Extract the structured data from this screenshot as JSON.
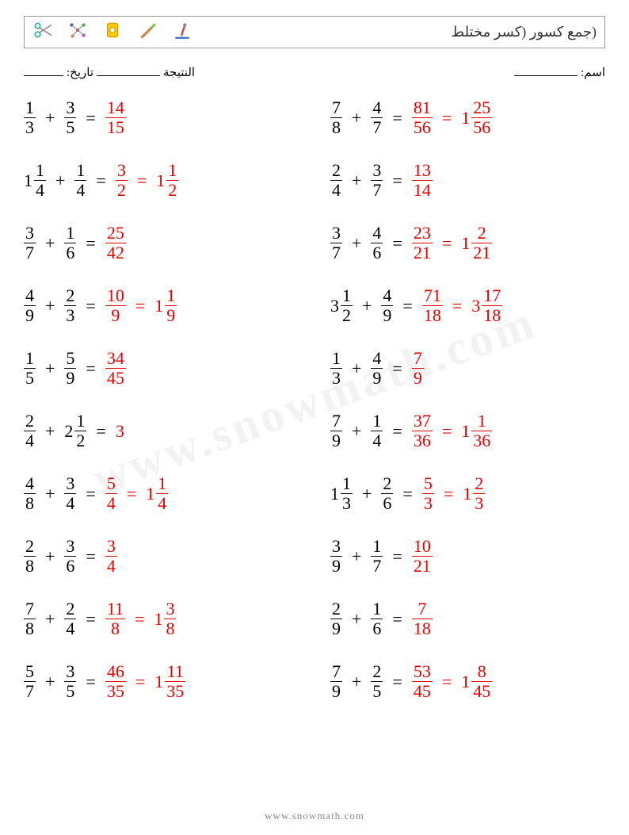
{
  "header": {
    "title": "(جمع كسور (كسر مختلط"
  },
  "meta": {
    "name_label": "اسم:",
    "score_label": "النتيجة",
    "date_label": "تاريخ:"
  },
  "watermark": "www.snowmath.com",
  "footer": "www.snowmath.com",
  "colors": {
    "answer": "#e60000",
    "text": "#000000",
    "border": "#999999",
    "watermark": "rgba(0,0,0,0.05)",
    "footer": "#888888"
  },
  "left_col": [
    {
      "a": {
        "n": 1,
        "d": 3
      },
      "b": {
        "n": 3,
        "d": 5
      },
      "ans": {
        "n": 14,
        "d": 15
      }
    },
    {
      "a": {
        "w": 1,
        "n": 1,
        "d": 4
      },
      "b": {
        "n": 1,
        "d": 4
      },
      "ans": {
        "n": 3,
        "d": 2
      },
      "ans2": {
        "w": 1,
        "n": 1,
        "d": 2
      }
    },
    {
      "a": {
        "n": 3,
        "d": 7
      },
      "b": {
        "n": 1,
        "d": 6
      },
      "ans": {
        "n": 25,
        "d": 42
      }
    },
    {
      "a": {
        "n": 4,
        "d": 9
      },
      "b": {
        "n": 2,
        "d": 3
      },
      "ans": {
        "n": 10,
        "d": 9
      },
      "ans2": {
        "w": 1,
        "n": 1,
        "d": 9
      }
    },
    {
      "a": {
        "n": 1,
        "d": 5
      },
      "b": {
        "n": 5,
        "d": 9
      },
      "ans": {
        "n": 34,
        "d": 45
      }
    },
    {
      "a": {
        "n": 2,
        "d": 4
      },
      "b": {
        "w": 2,
        "n": 1,
        "d": 2
      },
      "ans_whole": 3
    },
    {
      "a": {
        "n": 4,
        "d": 8
      },
      "b": {
        "n": 3,
        "d": 4
      },
      "ans": {
        "n": 5,
        "d": 4
      },
      "ans2": {
        "w": 1,
        "n": 1,
        "d": 4
      }
    },
    {
      "a": {
        "n": 2,
        "d": 8
      },
      "b": {
        "n": 3,
        "d": 6
      },
      "ans": {
        "n": 3,
        "d": 4
      }
    },
    {
      "a": {
        "n": 7,
        "d": 8
      },
      "b": {
        "n": 2,
        "d": 4
      },
      "ans": {
        "n": 11,
        "d": 8
      },
      "ans2": {
        "w": 1,
        "n": 3,
        "d": 8
      }
    },
    {
      "a": {
        "n": 5,
        "d": 7
      },
      "b": {
        "n": 3,
        "d": 5
      },
      "ans": {
        "n": 46,
        "d": 35
      },
      "ans2": {
        "w": 1,
        "n": 11,
        "d": 35
      }
    }
  ],
  "right_col": [
    {
      "a": {
        "n": 7,
        "d": 8
      },
      "b": {
        "n": 4,
        "d": 7
      },
      "ans": {
        "n": 81,
        "d": 56
      },
      "ans2": {
        "w": 1,
        "n": 25,
        "d": 56
      }
    },
    {
      "a": {
        "n": 2,
        "d": 4
      },
      "b": {
        "n": 3,
        "d": 7
      },
      "ans": {
        "n": 13,
        "d": 14
      }
    },
    {
      "a": {
        "n": 3,
        "d": 7
      },
      "b": {
        "n": 4,
        "d": 6
      },
      "ans": {
        "n": 23,
        "d": 21
      },
      "ans2": {
        "w": 1,
        "n": 2,
        "d": 21
      }
    },
    {
      "a": {
        "w": 3,
        "n": 1,
        "d": 2
      },
      "b": {
        "n": 4,
        "d": 9
      },
      "ans": {
        "n": 71,
        "d": 18
      },
      "ans2": {
        "w": 3,
        "n": 17,
        "d": 18
      }
    },
    {
      "a": {
        "n": 1,
        "d": 3
      },
      "b": {
        "n": 4,
        "d": 9
      },
      "ans": {
        "n": 7,
        "d": 9
      }
    },
    {
      "a": {
        "n": 7,
        "d": 9
      },
      "b": {
        "n": 1,
        "d": 4
      },
      "ans": {
        "n": 37,
        "d": 36
      },
      "ans2": {
        "w": 1,
        "n": 1,
        "d": 36
      }
    },
    {
      "a": {
        "w": 1,
        "n": 1,
        "d": 3
      },
      "b": {
        "n": 2,
        "d": 6
      },
      "ans": {
        "n": 5,
        "d": 3
      },
      "ans2": {
        "w": 1,
        "n": 2,
        "d": 3
      }
    },
    {
      "a": {
        "n": 3,
        "d": 9
      },
      "b": {
        "n": 1,
        "d": 7
      },
      "ans": {
        "n": 10,
        "d": 21
      }
    },
    {
      "a": {
        "n": 2,
        "d": 9
      },
      "b": {
        "n": 1,
        "d": 6
      },
      "ans": {
        "n": 7,
        "d": 18
      }
    },
    {
      "a": {
        "n": 7,
        "d": 9
      },
      "b": {
        "n": 2,
        "d": 5
      },
      "ans": {
        "n": 53,
        "d": 45
      },
      "ans2": {
        "w": 1,
        "n": 8,
        "d": 45
      }
    }
  ]
}
